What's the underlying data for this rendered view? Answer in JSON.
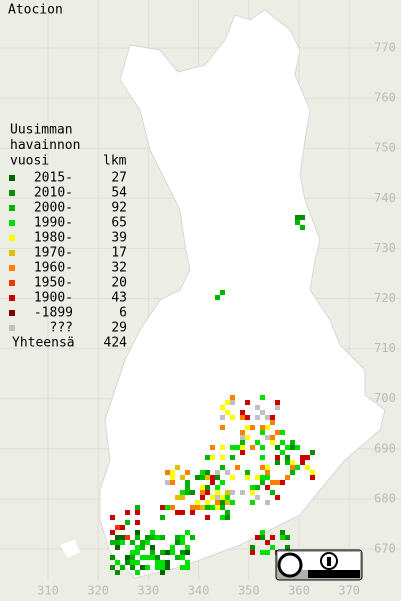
{
  "title": "Atocion",
  "legend": {
    "heading": [
      "Uusimman",
      "havainnon",
      "vuosi"
    ],
    "count_heading": "lkm",
    "items": [
      {
        "label": "2015-",
        "count": 27,
        "color": "#006400"
      },
      {
        "label": "2010-",
        "count": 54,
        "color": "#009000"
      },
      {
        "label": "2000-",
        "count": 92,
        "color": "#00b400"
      },
      {
        "label": "1990-",
        "count": 65,
        "color": "#00e000"
      },
      {
        "label": "1980-",
        "count": 39,
        "color": "#ffff00"
      },
      {
        "label": "1970-",
        "count": 17,
        "color": "#e0c000"
      },
      {
        "label": "1960-",
        "count": 32,
        "color": "#ff8000"
      },
      {
        "label": "1950-",
        "count": 20,
        "color": "#ff3000"
      },
      {
        "label": "1900-",
        "count": 43,
        "color": "#c80000"
      },
      {
        "label": "-1899",
        "count": 6,
        "color": "#800000"
      },
      {
        "label": "???",
        "count": 29,
        "color": "#c0c0c0"
      }
    ],
    "total_label": "Yhteensä",
    "total": 424
  },
  "axes": {
    "x_labels": [
      310,
      320,
      330,
      340,
      350,
      360,
      370
    ],
    "y_labels": [
      770,
      760,
      750,
      740,
      730,
      720,
      710,
      700,
      690,
      680,
      670
    ]
  }
}
